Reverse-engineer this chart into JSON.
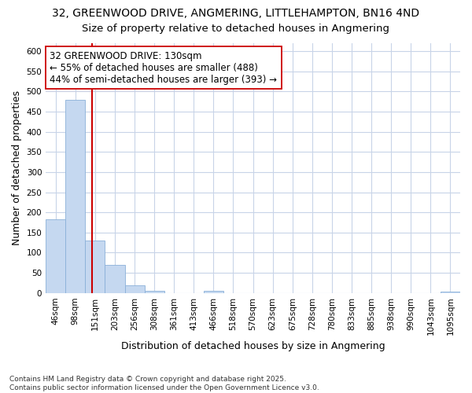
{
  "title": "32, GREENWOOD DRIVE, ANGMERING, LITTLEHAMPTON, BN16 4ND",
  "subtitle": "Size of property relative to detached houses in Angmering",
  "xlabel": "Distribution of detached houses by size in Angmering",
  "ylabel": "Number of detached properties",
  "bg_color": "#ffffff",
  "plot_bg_color": "#ffffff",
  "bar_color": "#c5d8f0",
  "bar_edge_color": "#8ab0d8",
  "bins": [
    "46sqm",
    "98sqm",
    "151sqm",
    "203sqm",
    "256sqm",
    "308sqm",
    "361sqm",
    "413sqm",
    "466sqm",
    "518sqm",
    "570sqm",
    "623sqm",
    "675sqm",
    "728sqm",
    "780sqm",
    "833sqm",
    "885sqm",
    "938sqm",
    "990sqm",
    "1043sqm",
    "1095sqm"
  ],
  "bar_heights": [
    183,
    480,
    130,
    70,
    18,
    5,
    0,
    0,
    5,
    0,
    0,
    0,
    0,
    0,
    0,
    0,
    0,
    0,
    0,
    0,
    3
  ],
  "vline_x_index": 1.85,
  "vline_color": "#cc0000",
  "annotation_text": "32 GREENWOOD DRIVE: 130sqm\n← 55% of detached houses are smaller (488)\n44% of semi-detached houses are larger (393) →",
  "annotation_box_color": "#ffffff",
  "annotation_box_edge": "#cc0000",
  "annotation_fontsize": 8.5,
  "ylim": [
    0,
    620
  ],
  "yticks": [
    0,
    50,
    100,
    150,
    200,
    250,
    300,
    350,
    400,
    450,
    500,
    550,
    600
  ],
  "footer": "Contains HM Land Registry data © Crown copyright and database right 2025.\nContains public sector information licensed under the Open Government Licence v3.0.",
  "title_fontsize": 10,
  "subtitle_fontsize": 9.5,
  "xlabel_fontsize": 9,
  "ylabel_fontsize": 9,
  "tick_fontsize": 7.5,
  "grid_color": "#c8d4e8"
}
